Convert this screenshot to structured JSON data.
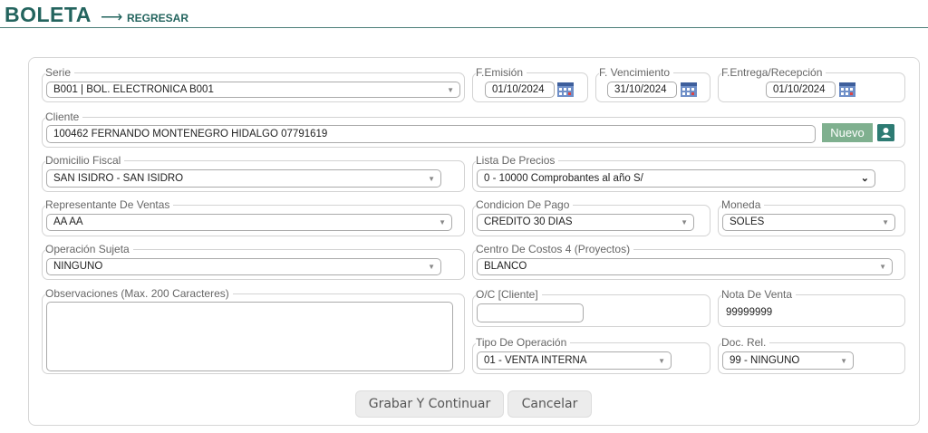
{
  "header": {
    "title": "BOLETA",
    "arrow": "⟶",
    "back_label": "REGRESAR"
  },
  "colors": {
    "accent": "#23645e",
    "nuevo": "#7fb08f"
  },
  "form": {
    "serie": {
      "label": "Serie",
      "value": "B001 | BOL. ELECTRONICA B001"
    },
    "f_emision": {
      "label": "F.Emisión",
      "value": "01/10/2024"
    },
    "f_vencimiento": {
      "label": "F. Vencimiento",
      "value": "31/10/2024"
    },
    "f_entrega": {
      "label": "F.Entrega/Recepción",
      "value": "01/10/2024"
    },
    "cliente": {
      "label": "Cliente",
      "value": "100462 FERNANDO MONTENEGRO HIDALGO 07791619",
      "nuevo_label": "Nuevo"
    },
    "domicilio": {
      "label": "Domicilio Fiscal",
      "value": "SAN ISIDRO - SAN ISIDRO"
    },
    "lista_precios": {
      "label": "Lista De Precios",
      "value": "0 - 10000 Comprobantes al año S/"
    },
    "representante": {
      "label": "Representante De Ventas",
      "value": "AA AA"
    },
    "condicion_pago": {
      "label": "Condicion De Pago",
      "value": "CREDITO 30 DIAS"
    },
    "moneda": {
      "label": "Moneda",
      "value": "SOLES"
    },
    "operacion_sujeta": {
      "label": "Operación Sujeta",
      "value": "NINGUNO"
    },
    "centro_costos": {
      "label": "Centro De Costos 4 (Proyectos)",
      "value": "BLANCO"
    },
    "observaciones": {
      "label": "Observaciones (Max. 200 Caracteres)",
      "value": ""
    },
    "oc_cliente": {
      "label": "O/C [Cliente]",
      "value": ""
    },
    "nota_venta": {
      "label": "Nota De Venta",
      "value": "99999999"
    },
    "tipo_operacion": {
      "label": "Tipo De Operación",
      "value": "01 - VENTA INTERNA"
    },
    "doc_rel": {
      "label": "Doc. Rel.",
      "value": "99 - NINGUNO"
    }
  },
  "actions": {
    "save_label": "Grabar Y Continuar",
    "cancel_label": "Cancelar"
  }
}
